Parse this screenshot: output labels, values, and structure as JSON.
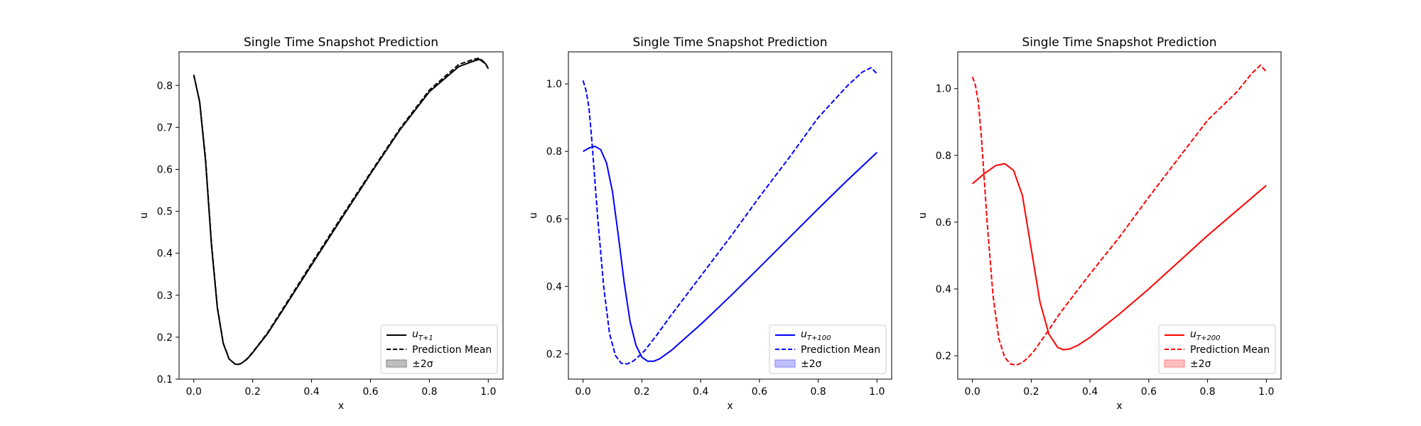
{
  "chart_data": [
    {
      "type": "line",
      "title": "Single Time Snapshot Prediction",
      "xlabel": "x",
      "ylabel": "u",
      "xlim": [
        -0.05,
        1.05
      ],
      "ylim": [
        0.1,
        0.88
      ],
      "xticks": [
        "0.0",
        "0.2",
        "0.4",
        "0.6",
        "0.8",
        "1.0"
      ],
      "yticks": [
        "0.1",
        "0.2",
        "0.3",
        "0.4",
        "0.5",
        "0.6",
        "0.7",
        "0.8"
      ],
      "ytick_values": [
        0.1,
        0.2,
        0.3,
        0.4,
        0.5,
        0.6,
        0.7,
        0.8
      ],
      "xtick_values": [
        0,
        0.2,
        0.4,
        0.6,
        0.8,
        1.0
      ],
      "color": "#000000",
      "band_color": "#808080",
      "legend": {
        "position": "lower right",
        "entries": [
          "u_{T+1}",
          "Prediction Mean",
          "±2σ"
        ],
        "true_label_main": "u",
        "true_label_sub": "T+1",
        "mean_label": "Prediction Mean",
        "band_label": "±2σ"
      },
      "series": [
        {
          "name": "u_{T+1}",
          "style": "solid",
          "x": [
            0.0,
            0.02,
            0.04,
            0.06,
            0.08,
            0.1,
            0.12,
            0.14,
            0.15,
            0.16,
            0.18,
            0.2,
            0.25,
            0.3,
            0.4,
            0.5,
            0.6,
            0.7,
            0.8,
            0.9,
            0.95,
            0.97,
            0.99,
            1.0
          ],
          "y": [
            0.825,
            0.76,
            0.62,
            0.42,
            0.27,
            0.185,
            0.148,
            0.136,
            0.135,
            0.137,
            0.147,
            0.163,
            0.208,
            0.262,
            0.372,
            0.481,
            0.589,
            0.694,
            0.785,
            0.845,
            0.858,
            0.862,
            0.852,
            0.84
          ]
        },
        {
          "name": "Prediction Mean",
          "style": "dashed",
          "x": [
            0.0,
            0.02,
            0.04,
            0.06,
            0.08,
            0.1,
            0.12,
            0.14,
            0.15,
            0.16,
            0.18,
            0.2,
            0.25,
            0.3,
            0.4,
            0.5,
            0.6,
            0.7,
            0.8,
            0.9,
            0.95,
            0.97,
            0.99,
            1.0
          ],
          "y": [
            0.825,
            0.762,
            0.625,
            0.425,
            0.272,
            0.186,
            0.148,
            0.136,
            0.135,
            0.137,
            0.148,
            0.164,
            0.21,
            0.265,
            0.376,
            0.485,
            0.592,
            0.697,
            0.789,
            0.85,
            0.862,
            0.865,
            0.853,
            0.84
          ]
        }
      ]
    },
    {
      "type": "line",
      "title": "Single Time Snapshot Prediction",
      "xlabel": "x",
      "ylabel": "u",
      "xlim": [
        -0.05,
        1.05
      ],
      "ylim": [
        0.125,
        1.095
      ],
      "xticks": [
        "0.0",
        "0.2",
        "0.4",
        "0.6",
        "0.8",
        "1.0"
      ],
      "yticks": [
        "0.2",
        "0.4",
        "0.6",
        "0.8",
        "1.0"
      ],
      "ytick_values": [
        0.2,
        0.4,
        0.6,
        0.8,
        1.0
      ],
      "xtick_values": [
        0,
        0.2,
        0.4,
        0.6,
        0.8,
        1.0
      ],
      "color": "#0000ff",
      "band_color": "#8080ff",
      "legend": {
        "position": "lower right",
        "entries": [
          "u_{T+100}",
          "Prediction Mean",
          "±2σ"
        ],
        "true_label_main": "u",
        "true_label_sub": "T+100",
        "mean_label": "Prediction Mean",
        "band_label": "±2σ"
      },
      "series": [
        {
          "name": "u_{T+100}",
          "style": "solid",
          "x": [
            0.0,
            0.02,
            0.04,
            0.06,
            0.08,
            0.1,
            0.12,
            0.14,
            0.16,
            0.18,
            0.2,
            0.22,
            0.24,
            0.26,
            0.3,
            0.4,
            0.5,
            0.6,
            0.7,
            0.8,
            0.9,
            1.0
          ],
          "y": [
            0.8,
            0.81,
            0.815,
            0.805,
            0.765,
            0.68,
            0.55,
            0.41,
            0.295,
            0.225,
            0.19,
            0.178,
            0.178,
            0.185,
            0.21,
            0.287,
            0.37,
            0.456,
            0.543,
            0.63,
            0.715,
            0.797
          ]
        },
        {
          "name": "Prediction Mean",
          "style": "dashed",
          "x": [
            0.0,
            0.01,
            0.02,
            0.03,
            0.05,
            0.07,
            0.09,
            0.11,
            0.13,
            0.15,
            0.17,
            0.19,
            0.21,
            0.25,
            0.3,
            0.4,
            0.5,
            0.6,
            0.7,
            0.8,
            0.9,
            0.95,
            0.98,
            1.0
          ],
          "y": [
            1.01,
            0.98,
            0.93,
            0.83,
            0.6,
            0.4,
            0.26,
            0.195,
            0.172,
            0.17,
            0.178,
            0.193,
            0.21,
            0.255,
            0.315,
            0.43,
            0.545,
            0.665,
            0.78,
            0.9,
            0.995,
            1.035,
            1.048,
            1.03
          ]
        }
      ]
    },
    {
      "type": "line",
      "title": "Single Time Snapshot Prediction",
      "xlabel": "x",
      "ylabel": "u",
      "xlim": [
        -0.05,
        1.05
      ],
      "ylim": [
        0.13,
        1.11
      ],
      "xticks": [
        "0.0",
        "0.2",
        "0.4",
        "0.6",
        "0.8",
        "1.0"
      ],
      "yticks": [
        "0.2",
        "0.4",
        "0.6",
        "0.8",
        "1.0"
      ],
      "ytick_values": [
        0.2,
        0.4,
        0.6,
        0.8,
        1.0
      ],
      "xtick_values": [
        0,
        0.2,
        0.4,
        0.6,
        0.8,
        1.0
      ],
      "color": "#ff0000",
      "band_color": "#ff8080",
      "legend": {
        "position": "lower right",
        "entries": [
          "u_{T+200}",
          "Prediction Mean",
          "±2σ"
        ],
        "true_label_main": "u",
        "true_label_sub": "T+200",
        "mean_label": "Prediction Mean",
        "band_label": "±2σ"
      },
      "series": [
        {
          "name": "u_{T+200}",
          "style": "solid",
          "x": [
            0.0,
            0.04,
            0.08,
            0.11,
            0.14,
            0.17,
            0.2,
            0.23,
            0.26,
            0.29,
            0.31,
            0.33,
            0.36,
            0.4,
            0.5,
            0.6,
            0.7,
            0.8,
            0.9,
            1.0
          ],
          "y": [
            0.715,
            0.745,
            0.77,
            0.775,
            0.755,
            0.68,
            0.52,
            0.36,
            0.265,
            0.225,
            0.218,
            0.22,
            0.232,
            0.255,
            0.325,
            0.4,
            0.48,
            0.56,
            0.635,
            0.71
          ]
        },
        {
          "name": "Prediction Mean",
          "style": "dashed",
          "x": [
            0.0,
            0.01,
            0.02,
            0.03,
            0.05,
            0.07,
            0.09,
            0.11,
            0.13,
            0.15,
            0.17,
            0.19,
            0.21,
            0.25,
            0.3,
            0.4,
            0.5,
            0.6,
            0.7,
            0.8,
            0.9,
            0.95,
            0.98,
            1.0
          ],
          "y": [
            1.035,
            1.01,
            0.96,
            0.86,
            0.6,
            0.38,
            0.25,
            0.195,
            0.175,
            0.172,
            0.18,
            0.195,
            0.215,
            0.265,
            0.33,
            0.445,
            0.555,
            0.675,
            0.79,
            0.905,
            0.99,
            1.045,
            1.07,
            1.05
          ]
        }
      ]
    }
  ]
}
